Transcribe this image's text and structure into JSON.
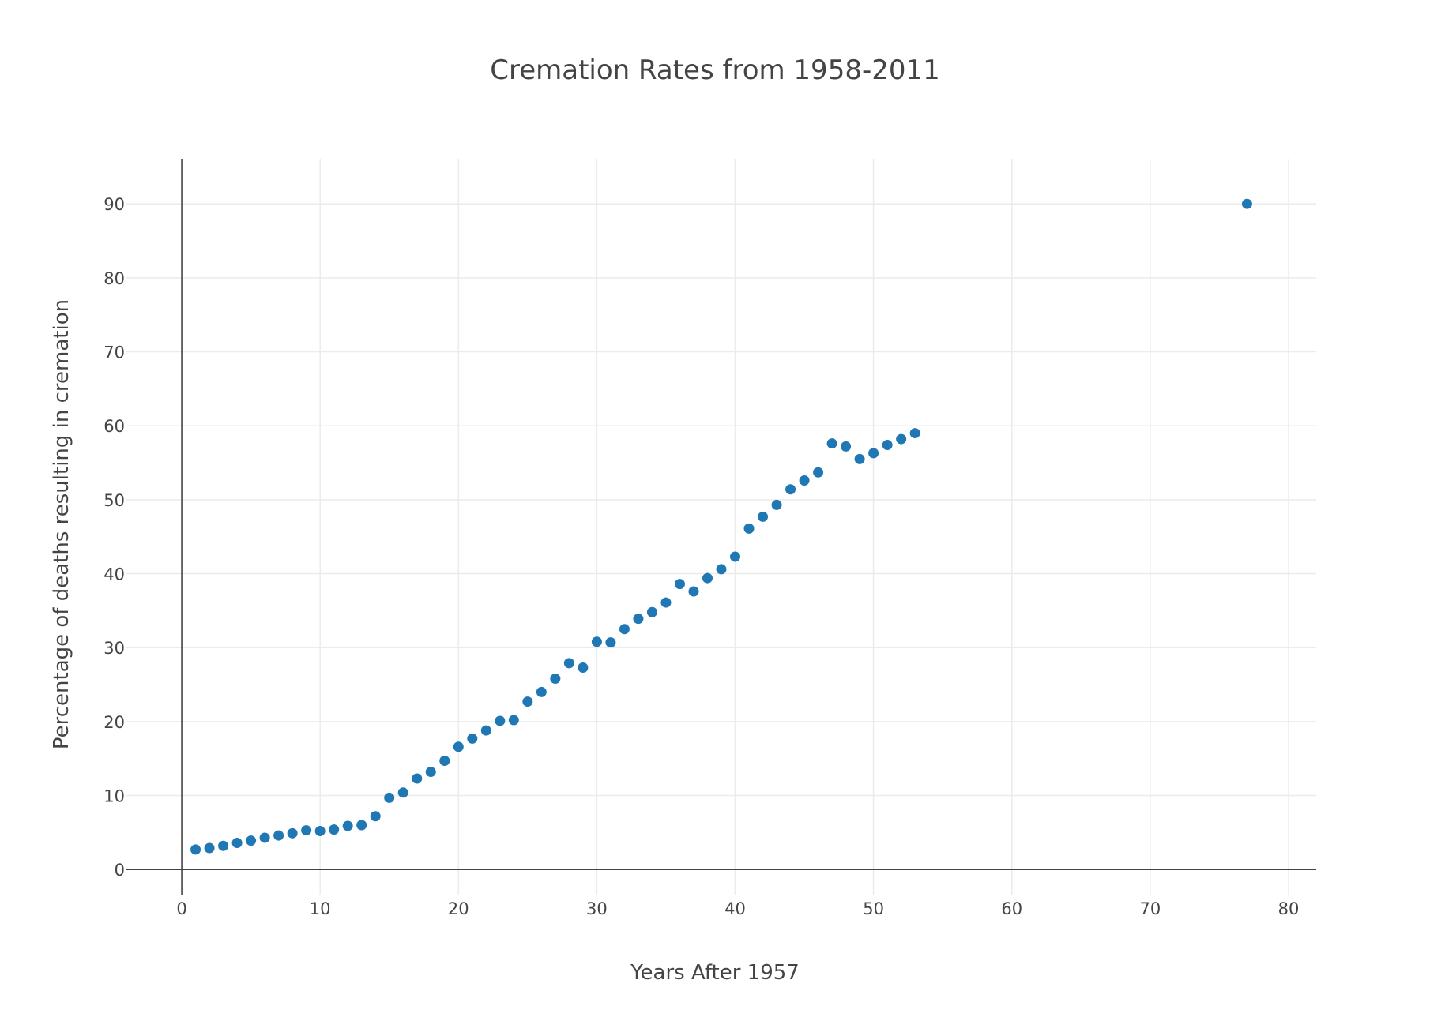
{
  "chart_data": {
    "type": "scatter",
    "title": "Cremation Rates from 1958-2011",
    "xlabel": "Years After 1957",
    "ylabel": "Percentage of deaths resulting in cremation",
    "xlim": [
      -4,
      82
    ],
    "ylim": [
      -3.5,
      96
    ],
    "xticks": [
      0,
      10,
      20,
      30,
      40,
      50,
      60,
      70,
      80
    ],
    "yticks": [
      0,
      10,
      20,
      30,
      40,
      50,
      60,
      70,
      80,
      90
    ],
    "grid": true,
    "marker_color": "#1f77b4",
    "points": [
      {
        "x": 1,
        "y": 2.7
      },
      {
        "x": 2,
        "y": 2.9
      },
      {
        "x": 3,
        "y": 3.2
      },
      {
        "x": 4,
        "y": 3.6
      },
      {
        "x": 5,
        "y": 3.9
      },
      {
        "x": 6,
        "y": 4.3
      },
      {
        "x": 7,
        "y": 4.6
      },
      {
        "x": 8,
        "y": 4.9
      },
      {
        "x": 9,
        "y": 5.3
      },
      {
        "x": 10,
        "y": 5.2
      },
      {
        "x": 11,
        "y": 5.4
      },
      {
        "x": 12,
        "y": 5.9
      },
      {
        "x": 13,
        "y": 6.0
      },
      {
        "x": 14,
        "y": 7.2
      },
      {
        "x": 15,
        "y": 9.7
      },
      {
        "x": 16,
        "y": 10.4
      },
      {
        "x": 17,
        "y": 12.3
      },
      {
        "x": 18,
        "y": 13.2
      },
      {
        "x": 19,
        "y": 14.7
      },
      {
        "x": 20,
        "y": 16.6
      },
      {
        "x": 21,
        "y": 17.7
      },
      {
        "x": 22,
        "y": 18.8
      },
      {
        "x": 23,
        "y": 20.1
      },
      {
        "x": 24,
        "y": 20.2
      },
      {
        "x": 25,
        "y": 22.7
      },
      {
        "x": 26,
        "y": 24.0
      },
      {
        "x": 27,
        "y": 25.8
      },
      {
        "x": 28,
        "y": 27.9
      },
      {
        "x": 29,
        "y": 27.3
      },
      {
        "x": 30,
        "y": 30.8
      },
      {
        "x": 31,
        "y": 30.7
      },
      {
        "x": 32,
        "y": 32.5
      },
      {
        "x": 33,
        "y": 33.9
      },
      {
        "x": 34,
        "y": 34.8
      },
      {
        "x": 35,
        "y": 36.1
      },
      {
        "x": 36,
        "y": 38.6
      },
      {
        "x": 37,
        "y": 37.6
      },
      {
        "x": 38,
        "y": 39.4
      },
      {
        "x": 39,
        "y": 40.6
      },
      {
        "x": 40,
        "y": 42.3
      },
      {
        "x": 41,
        "y": 46.1
      },
      {
        "x": 42,
        "y": 47.7
      },
      {
        "x": 43,
        "y": 49.3
      },
      {
        "x": 44,
        "y": 51.4
      },
      {
        "x": 45,
        "y": 52.6
      },
      {
        "x": 46,
        "y": 53.7
      },
      {
        "x": 47,
        "y": 57.6
      },
      {
        "x": 48,
        "y": 57.2
      },
      {
        "x": 49,
        "y": 55.5
      },
      {
        "x": 50,
        "y": 56.3
      },
      {
        "x": 51,
        "y": 57.4
      },
      {
        "x": 52,
        "y": 58.2
      },
      {
        "x": 53,
        "y": 59.0
      },
      {
        "x": 77,
        "y": 90.0
      }
    ]
  }
}
